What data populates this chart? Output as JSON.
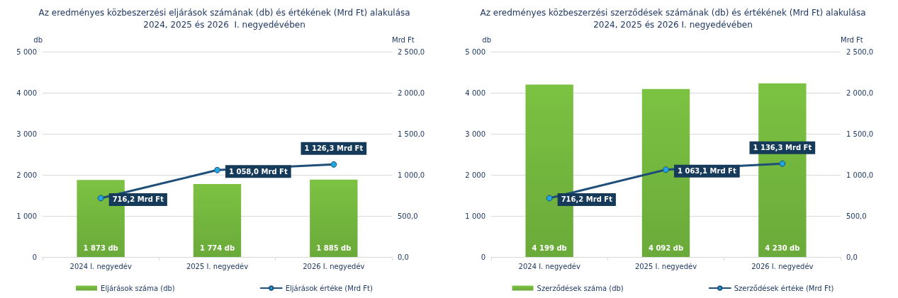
{
  "chart_data": [
    {
      "type": "bar",
      "title": "Az eredményes közbeszerzési eljárások számának (db) és értékének (Mrd Ft) alakulása\n2024, 2025 és 2026  I. negyedévében",
      "ylabel": "db",
      "y2label": "Mrd Ft",
      "categories": [
        "2024 I. negyedév",
        "2025 I. negyedév",
        "2026 I. negyedév"
      ],
      "series": [
        {
          "name": "Eljárások száma (db)",
          "color": "#7cc242",
          "values": [
            1873,
            1774,
            1885
          ],
          "value_labels": [
            "1 873 db",
            "1 774 db",
            "1 885 db"
          ]
        },
        {
          "name": "Eljárások értéke (Mrd Ft)",
          "type": "line",
          "axis": "y2",
          "color": "#1f4e79",
          "values": [
            716.2,
            1058.0,
            1126.3
          ],
          "value_labels": [
            "716,2 Mrd Ft",
            "1 058,0 Mrd Ft",
            "1 126,3 Mrd Ft"
          ]
        }
      ],
      "ylim": [
        0,
        5000
      ],
      "yticks": [
        0,
        {
          "value": 1000,
          "label": "1 000"
        },
        {
          "value": 2000,
          "label": "2 000"
        },
        {
          "value": 3000,
          "label": "3 000"
        },
        {
          "value": 4000,
          "label": "4 000"
        },
        {
          "value": 5000,
          "label": "5 000"
        }
      ],
      "y2lim": [
        0,
        2500
      ],
      "y2ticks": [
        {
          "value": 0,
          "label": "0,0"
        },
        {
          "value": 500,
          "label": "500,0"
        },
        {
          "value": 1000,
          "label": "1 000,0"
        },
        {
          "value": 1500,
          "label": "1 500,0"
        },
        {
          "value": 2000,
          "label": "2 000,0"
        },
        {
          "value": 2500,
          "label": "2 500,0"
        }
      ],
      "grid": "y",
      "legend": "bottom",
      "marker": "circle",
      "line_style": "solid"
    },
    {
      "type": "bar",
      "title": "Az eredményes közbeszerzési szerződések számának (db) és értékének (Mrd Ft) alakulása\n2024, 2025 és 2026 I. negyedévében",
      "ylabel": "db",
      "y2label": "Mrd Ft",
      "categories": [
        "2024 I. negyedév",
        "2025 I. negyedév",
        "2026 I. negyedév"
      ],
      "series": [
        {
          "name": "Szerződések száma (db)",
          "color": "#7cc242",
          "values": [
            4199,
            4092,
            4230
          ],
          "value_labels": [
            "4 199 db",
            "4 092 db",
            "4 230 db"
          ]
        },
        {
          "name": "Szerződések értéke (Mrd Ft)",
          "type": "line",
          "axis": "y2",
          "color": "#1f4e79",
          "values": [
            716.2,
            1063.1,
            1136.3
          ],
          "value_labels": [
            "716,2 Mrd Ft",
            "1 063,1 Mrd Ft",
            "1 136,3 Mrd Ft"
          ]
        }
      ],
      "ylim": [
        0,
        5000
      ],
      "yticks": [
        0,
        {
          "value": 1000,
          "label": "1 000"
        },
        {
          "value": 2000,
          "label": "2 000"
        },
        {
          "value": 3000,
          "label": "3 000"
        },
        {
          "value": 4000,
          "label": "4 000"
        },
        {
          "value": 5000,
          "label": "5 000"
        }
      ],
      "y2lim": [
        0,
        2500
      ],
      "y2ticks": [
        {
          "value": 0,
          "label": "0,0"
        },
        {
          "value": 500,
          "label": "500,0"
        },
        {
          "value": 1000,
          "label": "1 000,0"
        },
        {
          "value": 1500,
          "label": "1 500,0"
        },
        {
          "value": 2000,
          "label": "2 000,0"
        },
        {
          "value": 2500,
          "label": "2 500,0"
        }
      ],
      "grid": "y",
      "legend": "bottom",
      "marker": "circle",
      "line_style": "solid"
    }
  ]
}
